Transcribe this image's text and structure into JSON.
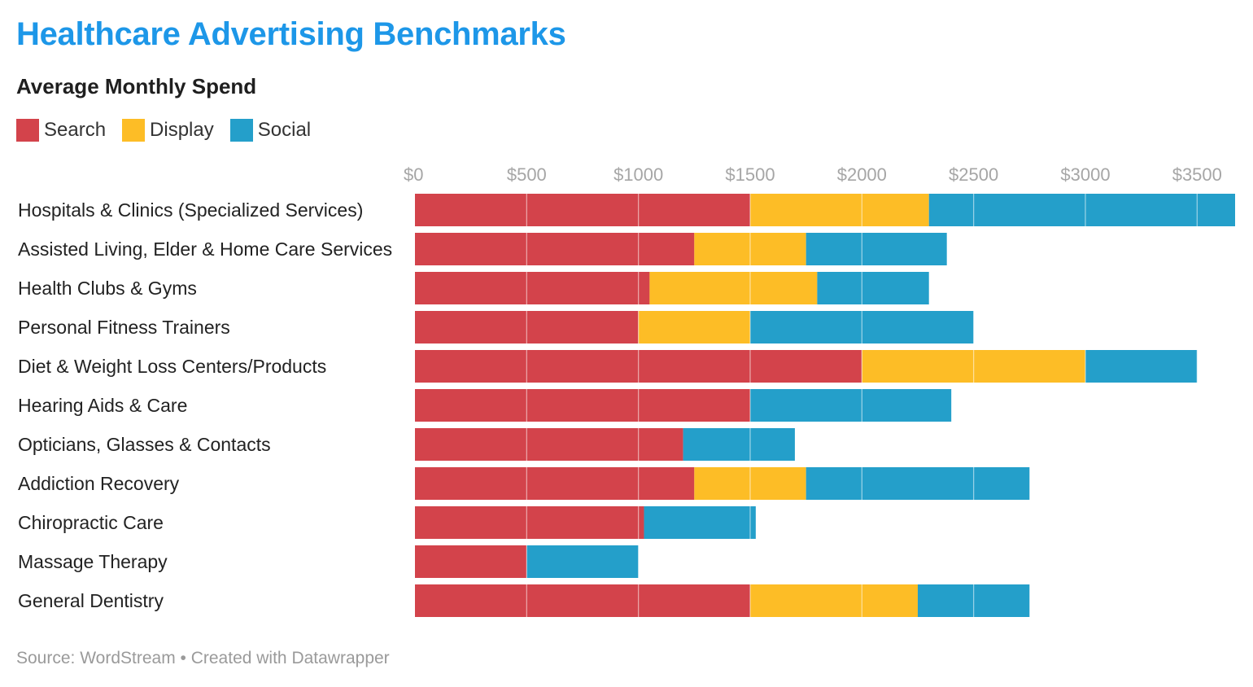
{
  "title": "Healthcare Advertising Benchmarks",
  "subtitle": "Average Monthly Spend",
  "legend": [
    {
      "label": "Search",
      "color": "#d3434b"
    },
    {
      "label": "Display",
      "color": "#fdbd26"
    },
    {
      "label": "Social",
      "color": "#249fca"
    }
  ],
  "footer": {
    "source": "Source: WordStream",
    "separator": " • ",
    "credit": "Created with Datawrapper"
  },
  "chart_data": {
    "type": "bar",
    "orientation": "horizontal",
    "stacked": true,
    "categories": [
      "Hospitals & Clinics (Specialized Services)",
      "Assisted Living, Elder & Home Care Services",
      "Health Clubs & Gyms",
      "Personal Fitness Trainers",
      "Diet & Weight Loss Centers/Products",
      "Hearing Aids & Care",
      "Opticians, Glasses & Contacts",
      "Addiction Recovery",
      "Chiropractic Care",
      "Massage Therapy",
      "General Dentistry"
    ],
    "series": [
      {
        "name": "Search",
        "color": "#d3434b",
        "values": [
          1500,
          1250,
          1050,
          1000,
          2000,
          1500,
          1200,
          1250,
          1025,
          500,
          1500
        ]
      },
      {
        "name": "Display",
        "color": "#fdbd26",
        "values": [
          800,
          500,
          750,
          500,
          1000,
          0,
          0,
          500,
          0,
          0,
          750
        ]
      },
      {
        "name": "Social",
        "color": "#249fca",
        "values": [
          1370,
          630,
          500,
          1000,
          500,
          900,
          500,
          1000,
          500,
          500,
          500
        ]
      }
    ],
    "x_ticks": [
      "$0",
      "$500",
      "$1000",
      "$1500",
      "$2000",
      "$2500",
      "$3000",
      "$3500"
    ],
    "x_tick_values": [
      0,
      500,
      1000,
      1500,
      2000,
      2500,
      3000,
      3500
    ],
    "xlim": [
      0,
      3670
    ],
    "grid": true,
    "legend_position": "top-left"
  }
}
